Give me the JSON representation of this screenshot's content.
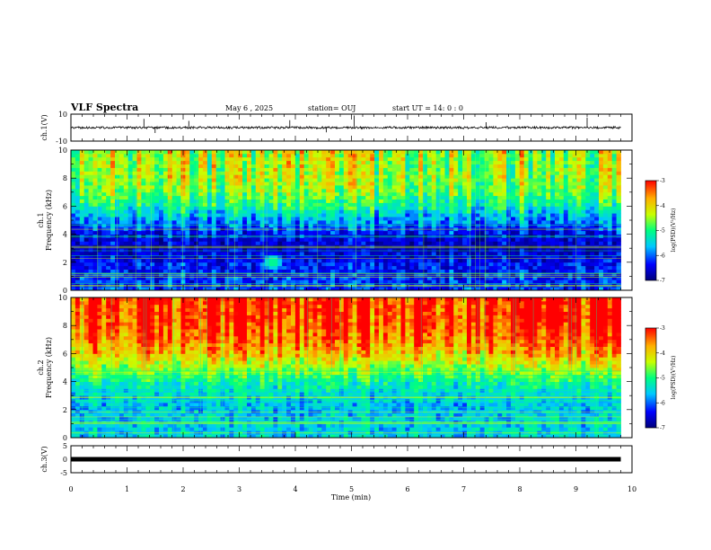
{
  "header": {
    "title": "VLF Spectra",
    "date": "May 6  , 2025",
    "station": "station= OUJ",
    "start": "start  UT  =  14: 0  : 0"
  },
  "chart_data": [
    {
      "type": "line",
      "name": "ch.1 waveform",
      "ylabel": "ch.1(V)",
      "ylim": [
        -10,
        10
      ],
      "yticks": [
        "10",
        "-10"
      ],
      "xlim": [
        0,
        10
      ],
      "baseline": 0,
      "noise_amplitude": 0.8,
      "spikes": [
        {
          "t": 1.3,
          "v": 6.5
        },
        {
          "t": 1.5,
          "v": -4.0
        },
        {
          "t": 2.1,
          "v": 5.0
        },
        {
          "t": 3.9,
          "v": 5.5
        },
        {
          "t": 5.05,
          "v": 9.0
        },
        {
          "t": 9.2,
          "v": 7.5
        },
        {
          "t": 4.55,
          "v": -3.5
        },
        {
          "t": 7.4,
          "v": 4.0
        }
      ]
    },
    {
      "type": "heatmap",
      "name": "ch.1 spectrogram",
      "ylabel_line1": "ch.1",
      "ylabel_line2": "Frequency  (kHz)",
      "ylim_khz": [
        0,
        10
      ],
      "yticks": [
        "0",
        "2",
        "4",
        "6",
        "8",
        "10"
      ],
      "xlim": [
        0,
        9.8
      ],
      "colorbar": {
        "label": "log(PSD)(V²/Hz)",
        "range": [
          -7,
          -3
        ],
        "ticks": [
          "-3",
          "-4",
          "-5",
          "-6",
          "-7"
        ]
      },
      "band_profile": [
        {
          "f": 0,
          "v": -6.2
        },
        {
          "f": 1,
          "v": -6.3
        },
        {
          "f": 2,
          "v": -6.4
        },
        {
          "f": 3,
          "v": -6.7
        },
        {
          "f": 4,
          "v": -6.5
        },
        {
          "f": 5,
          "v": -5.9
        },
        {
          "f": 6,
          "v": -5.3
        },
        {
          "f": 7,
          "v": -4.8
        },
        {
          "f": 8,
          "v": -4.6
        },
        {
          "f": 9,
          "v": -4.6
        },
        {
          "f": 10,
          "v": -4.6
        }
      ],
      "hot_spot": {
        "t": 3.6,
        "f": 2.0,
        "v": -5.0
      }
    },
    {
      "type": "heatmap",
      "name": "ch.2 spectrogram",
      "ylabel_line1": "ch.2",
      "ylabel_line2": "Frequency  (kHz)",
      "ylim_khz": [
        0,
        10
      ],
      "yticks": [
        "0",
        "2",
        "4",
        "6",
        "8",
        "10"
      ],
      "xlim": [
        0,
        9.8
      ],
      "colorbar": {
        "label": "log(PSD)(V²/Hz)",
        "range": [
          -7,
          -3
        ],
        "ticks": [
          "-3",
          "-4",
          "-5",
          "-6",
          "-7"
        ]
      },
      "band_profile": [
        {
          "f": 0,
          "v": -5.6
        },
        {
          "f": 1,
          "v": -5.6
        },
        {
          "f": 2,
          "v": -5.7
        },
        {
          "f": 3,
          "v": -5.6
        },
        {
          "f": 4,
          "v": -5.2
        },
        {
          "f": 5,
          "v": -4.6
        },
        {
          "f": 6,
          "v": -4.0
        },
        {
          "f": 7,
          "v": -3.6
        },
        {
          "f": 8,
          "v": -3.4
        },
        {
          "f": 9,
          "v": -3.3
        },
        {
          "f": 10,
          "v": -3.3
        }
      ]
    },
    {
      "type": "line",
      "name": "ch.3 waveform",
      "ylabel": "ch.3(V)",
      "ylim": [
        -5,
        5
      ],
      "yticks": [
        "5",
        "0",
        "-5"
      ],
      "xlim": [
        0,
        10
      ],
      "baseline": 0
    }
  ],
  "x_axis": {
    "label": "Time  (min)",
    "range": [
      0,
      10
    ],
    "ticks": [
      "0",
      "1",
      "2",
      "3",
      "4",
      "5",
      "6",
      "7",
      "8",
      "9",
      "10"
    ]
  },
  "colormap": [
    "#00007a",
    "#0000ff",
    "#00c8ff",
    "#00ff80",
    "#c8ff00",
    "#ffb000",
    "#ff0000"
  ]
}
